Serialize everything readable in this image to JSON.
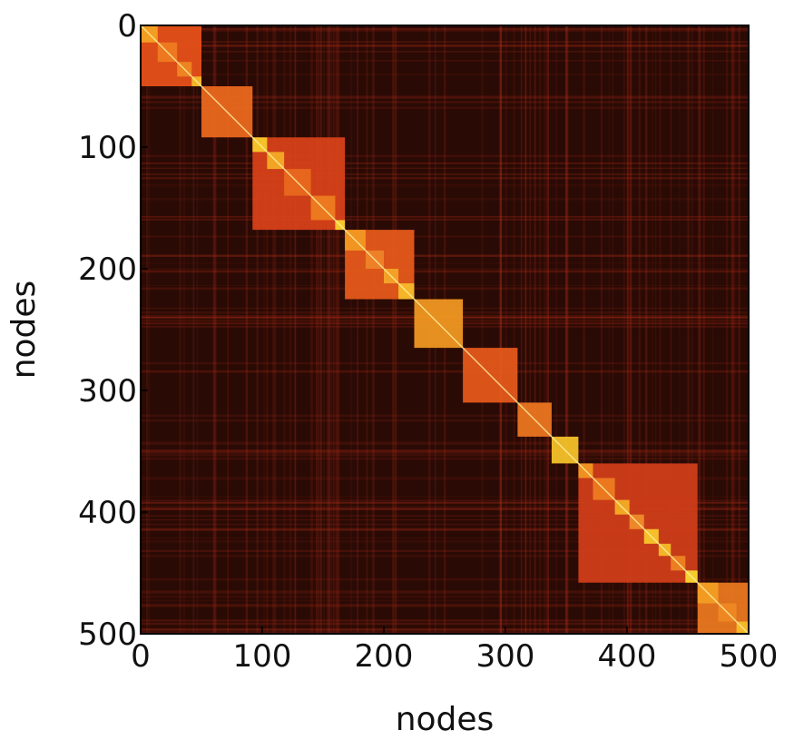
{
  "chart_data": {
    "type": "heatmap",
    "xlabel": "nodes",
    "ylabel": "nodes",
    "xlim": [
      0,
      500
    ],
    "ylim": [
      0,
      500
    ],
    "y_inverted": true,
    "x_ticks": [
      "0",
      "100",
      "200",
      "300",
      "400",
      "500"
    ],
    "y_ticks": [
      "0",
      "100",
      "200",
      "300",
      "400",
      "500"
    ],
    "x_tick_values": [
      0,
      100,
      200,
      300,
      400,
      500
    ],
    "y_tick_values": [
      0,
      100,
      200,
      300,
      400,
      500
    ],
    "colormap": "hot",
    "grid": false,
    "legend": "none",
    "background_color": "#2a0a05",
    "blocks": [
      {
        "start": 0,
        "end": 50,
        "intensity": 0.72,
        "color": "#e8521a"
      },
      {
        "start": 50,
        "end": 92,
        "intensity": 0.75,
        "color": "#ee6a1e"
      },
      {
        "start": 92,
        "end": 168,
        "intensity": 0.62,
        "color": "#d9431a"
      },
      {
        "start": 168,
        "end": 225,
        "intensity": 0.72,
        "color": "#e85a1b"
      },
      {
        "start": 225,
        "end": 265,
        "intensity": 0.85,
        "color": "#f39a22"
      },
      {
        "start": 265,
        "end": 310,
        "intensity": 0.72,
        "color": "#e75a1c"
      },
      {
        "start": 310,
        "end": 338,
        "intensity": 0.78,
        "color": "#ee7720"
      },
      {
        "start": 338,
        "end": 360,
        "intensity": 0.92,
        "color": "#f8c52a"
      },
      {
        "start": 360,
        "end": 458,
        "intensity": 0.58,
        "color": "#d23e1a"
      },
      {
        "start": 458,
        "end": 500,
        "intensity": 0.78,
        "color": "#ec7a20"
      }
    ],
    "sub_blocks": [
      {
        "start": 0,
        "end": 14,
        "color": "#f5a624"
      },
      {
        "start": 14,
        "end": 30,
        "color": "#ef7d20"
      },
      {
        "start": 30,
        "end": 42,
        "color": "#f08a22"
      },
      {
        "start": 42,
        "end": 50,
        "color": "#f7c02a"
      },
      {
        "start": 92,
        "end": 104,
        "color": "#fad02c"
      },
      {
        "start": 104,
        "end": 118,
        "color": "#f6b026"
      },
      {
        "start": 118,
        "end": 140,
        "color": "#ea6a1e"
      },
      {
        "start": 140,
        "end": 160,
        "color": "#ef7f20"
      },
      {
        "start": 160,
        "end": 168,
        "color": "#f9d62e"
      },
      {
        "start": 168,
        "end": 185,
        "color": "#f39b22"
      },
      {
        "start": 185,
        "end": 200,
        "color": "#f0852a"
      },
      {
        "start": 200,
        "end": 212,
        "color": "#f5a928"
      },
      {
        "start": 212,
        "end": 225,
        "color": "#f8c02a"
      },
      {
        "start": 360,
        "end": 372,
        "color": "#f39a22"
      },
      {
        "start": 372,
        "end": 390,
        "color": "#ee7f20"
      },
      {
        "start": 390,
        "end": 402,
        "color": "#f6b426"
      },
      {
        "start": 402,
        "end": 414,
        "color": "#f2902a"
      },
      {
        "start": 414,
        "end": 426,
        "color": "#f9ce2c"
      },
      {
        "start": 426,
        "end": 436,
        "color": "#f7c22a"
      },
      {
        "start": 436,
        "end": 448,
        "color": "#f08624"
      },
      {
        "start": 448,
        "end": 458,
        "color": "#fbe032"
      },
      {
        "start": 458,
        "end": 475,
        "color": "#f4a024"
      },
      {
        "start": 475,
        "end": 490,
        "color": "#f08a22"
      },
      {
        "start": 490,
        "end": 500,
        "color": "#f8c02a"
      }
    ]
  }
}
